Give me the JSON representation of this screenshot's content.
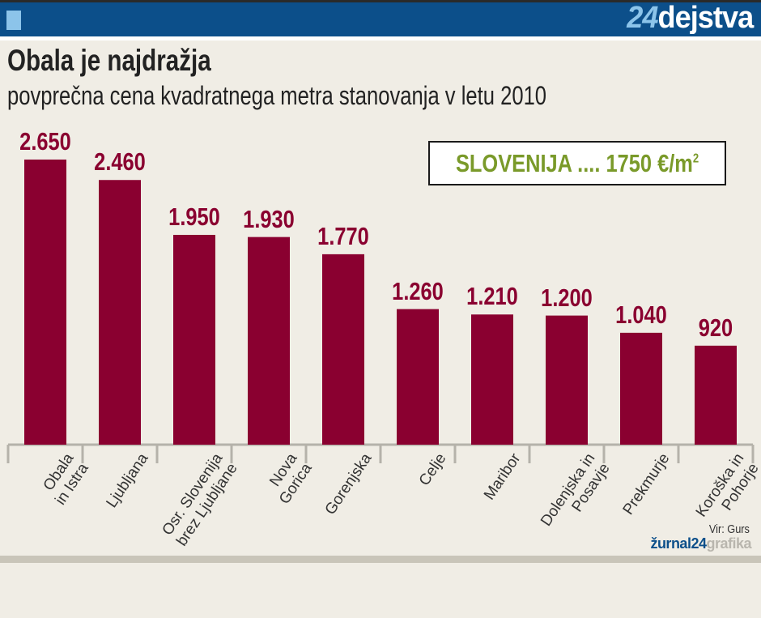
{
  "header": {
    "logo_number": "24",
    "logo_text": "dejstva"
  },
  "chart_data": {
    "type": "bar",
    "title": "Obala je najdražja",
    "subtitle": "povprečna cena kvadratnega metra stanovanja v letu 2010",
    "categories": [
      "Obala\nin Istra",
      "Ljubljana",
      "Osr. Slovenija\nbrez Ljubljane",
      "Nova\nGorica",
      "Gorenjska",
      "Celje",
      "Maribor",
      "Dolenjska in\nPosavje",
      "Prekmurje",
      "Koroška in\nPohorje"
    ],
    "values": [
      2650,
      2460,
      1950,
      1930,
      1770,
      1260,
      1210,
      1200,
      1040,
      920
    ],
    "value_labels": [
      "2.650",
      "2.460",
      "1.950",
      "1.930",
      "1.770",
      "1.260",
      "1.210",
      "1.200",
      "1.040",
      "920"
    ],
    "annotation": {
      "text": "SLOVENIJA .... 1750 €/m",
      "sup": "2"
    },
    "bar_color": "#8a0030",
    "grid": false
  },
  "footer": {
    "source": "Vir: Gurs",
    "brand_main": "žurnal24",
    "brand_sub": "grafika"
  }
}
